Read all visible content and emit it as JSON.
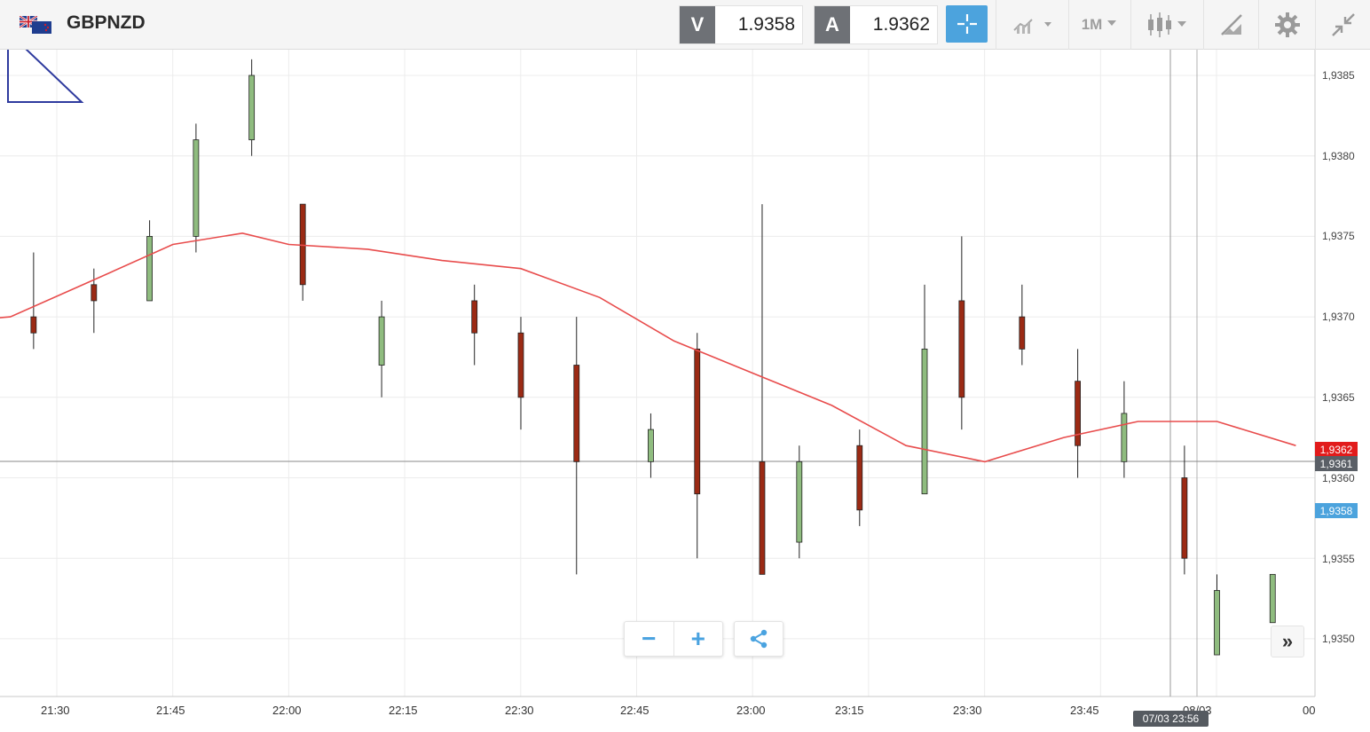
{
  "header": {
    "symbol": "GBPNZD",
    "flag_icon": "gb-nz-flag-icon",
    "bid_label": "V",
    "bid_value": "1.9358",
    "ask_label": "A",
    "ask_value": "1.9362",
    "timeframe": "1M",
    "icons": [
      "crosshair-icon",
      "chart-type-icon",
      "candlestick-icon",
      "drawing-tools-icon",
      "settings-icon",
      "collapse-icon"
    ]
  },
  "chart": {
    "y_ticks": [
      "1,9385",
      "1,9380",
      "1,9375",
      "1,9370",
      "1,9365",
      "1,9360",
      "1,9355",
      "1,9350"
    ],
    "x_ticks": [
      "21:30",
      "21:45",
      "22:00",
      "22:15",
      "22:30",
      "22:45",
      "23:00",
      "23:15",
      "23:30",
      "23:45",
      "08/03",
      "00"
    ],
    "ask_price_tag": "1,9362",
    "current_price_tag": "1,9361",
    "bid_price_tag": "1,9358",
    "crosshair_time": "07/03 23:56",
    "colors": {
      "up": "#8fbc7f",
      "down": "#9b2a14",
      "ma": "#e84c4c",
      "ask": "#e21b1b",
      "bid": "#4ca3dd",
      "current": "#5a5f66"
    }
  },
  "controls": {
    "zoom_out": "−",
    "zoom_in": "+",
    "share_icon": "share-icon",
    "scroll_right": "»"
  },
  "chart_data": {
    "type": "candlestick",
    "symbol": "GBPNZD",
    "interval": "1M",
    "ylim": [
      1.9346,
      1.9388
    ],
    "moving_average": [
      [
        21.0,
        1.9369
      ],
      [
        21.4,
        1.937
      ],
      [
        21.58,
        1.93723
      ],
      [
        21.75,
        1.93745
      ],
      [
        21.9,
        1.93752
      ],
      [
        22.0,
        1.93745
      ],
      [
        22.17,
        1.93742
      ],
      [
        22.33,
        1.93735
      ],
      [
        22.5,
        1.9373
      ],
      [
        22.67,
        1.93712
      ],
      [
        22.83,
        1.93685
      ],
      [
        23.0,
        1.93665
      ],
      [
        23.17,
        1.93645
      ],
      [
        23.33,
        1.9362
      ],
      [
        23.5,
        1.9361
      ],
      [
        23.67,
        1.93625
      ],
      [
        23.83,
        1.93635
      ],
      [
        24.0,
        1.93635
      ],
      [
        24.17,
        1.9362
      ]
    ],
    "candles": [
      {
        "t": 21.45,
        "o": 1.937,
        "c": 1.9369,
        "h": 1.9374,
        "l": 1.9368
      },
      {
        "t": 21.58,
        "o": 1.9372,
        "c": 1.9371,
        "h": 1.9373,
        "l": 1.9369
      },
      {
        "t": 21.7,
        "o": 1.9371,
        "c": 1.9375,
        "h": 1.9376,
        "l": 1.9371
      },
      {
        "t": 21.8,
        "o": 1.9375,
        "c": 1.9381,
        "h": 1.9382,
        "l": 1.9374
      },
      {
        "t": 21.92,
        "o": 1.9381,
        "c": 1.9385,
        "h": 1.9386,
        "l": 1.938
      },
      {
        "t": 22.03,
        "o": 1.9377,
        "c": 1.9372,
        "h": 1.9377,
        "l": 1.9371
      },
      {
        "t": 22.2,
        "o": 1.9367,
        "c": 1.937,
        "h": 1.9371,
        "l": 1.9365
      },
      {
        "t": 22.4,
        "o": 1.9371,
        "c": 1.9369,
        "h": 1.9372,
        "l": 1.9367
      },
      {
        "t": 22.5,
        "o": 1.9369,
        "c": 1.9365,
        "h": 1.937,
        "l": 1.9363
      },
      {
        "t": 22.62,
        "o": 1.9367,
        "c": 1.9361,
        "h": 1.937,
        "l": 1.9354
      },
      {
        "t": 22.78,
        "o": 1.9361,
        "c": 1.9363,
        "h": 1.9364,
        "l": 1.936
      },
      {
        "t": 22.88,
        "o": 1.9368,
        "c": 1.9359,
        "h": 1.9369,
        "l": 1.9355
      },
      {
        "t": 23.02,
        "o": 1.9361,
        "c": 1.9354,
        "h": 1.9377,
        "l": 1.9354
      },
      {
        "t": 23.1,
        "o": 1.9356,
        "c": 1.9361,
        "h": 1.9362,
        "l": 1.9355
      },
      {
        "t": 23.23,
        "o": 1.9362,
        "c": 1.9358,
        "h": 1.9363,
        "l": 1.9357
      },
      {
        "t": 23.37,
        "o": 1.9359,
        "c": 1.9368,
        "h": 1.9372,
        "l": 1.9359
      },
      {
        "t": 23.45,
        "o": 1.9371,
        "c": 1.9365,
        "h": 1.9375,
        "l": 1.9363
      },
      {
        "t": 23.58,
        "o": 1.937,
        "c": 1.9368,
        "h": 1.9372,
        "l": 1.9367
      },
      {
        "t": 23.7,
        "o": 1.9366,
        "c": 1.9362,
        "h": 1.9368,
        "l": 1.936
      },
      {
        "t": 23.8,
        "o": 1.9361,
        "c": 1.9364,
        "h": 1.9366,
        "l": 1.936
      },
      {
        "t": 23.93,
        "o": 1.936,
        "c": 1.9355,
        "h": 1.9362,
        "l": 1.9354
      },
      {
        "t": 24.0,
        "o": 1.9349,
        "c": 1.9353,
        "h": 1.9354,
        "l": 1.9349
      },
      {
        "t": 24.12,
        "o": 1.9351,
        "c": 1.9354,
        "h": 1.9354,
        "l": 1.9351
      }
    ]
  }
}
